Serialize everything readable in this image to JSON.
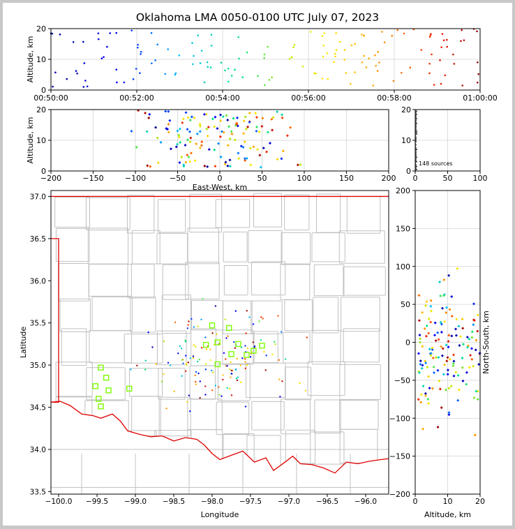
{
  "title": "Oklahoma LMA 0050-0100 UTC July 07, 2023",
  "colors": {
    "grid": "#d3d3d3",
    "county": "#c0c0c0",
    "state": "#e00000",
    "station": "#7cfc00"
  },
  "chart_data": [
    {
      "name": "time-height",
      "type": "scatter",
      "ylabel": "Altitude, km",
      "xlim": [
        "00:50:00",
        "01:00:00"
      ],
      "ylim": [
        0,
        20
      ],
      "xticks": [
        "00:50:00",
        "00:52:00",
        "00:54:00",
        "00:56:00",
        "00:58:00",
        "01:00:00"
      ],
      "yticks": [
        "0",
        "10",
        "20"
      ],
      "color_by_time": true,
      "points_approx": [
        [
          0.2,
          16
        ],
        [
          0.8,
          19
        ],
        [
          1.4,
          18
        ],
        [
          2.5,
          13
        ],
        [
          3.2,
          9
        ],
        [
          4.1,
          6
        ],
        [
          4.7,
          10
        ],
        [
          5.3,
          19
        ],
        [
          6.2,
          12
        ],
        [
          7.6,
          3
        ],
        [
          8.5,
          10
        ],
        [
          9.1,
          17
        ],
        [
          9.5,
          3
        ],
        [
          10.2,
          19
        ],
        [
          11.8,
          8
        ],
        [
          12.6,
          20
        ],
        [
          13.4,
          10
        ],
        [
          14.8,
          19
        ],
        [
          15.9,
          12
        ],
        [
          16.7,
          15
        ],
        [
          17.6,
          10
        ],
        [
          18.4,
          15
        ],
        [
          19.3,
          18
        ],
        [
          20.8,
          11
        ],
        [
          21.7,
          6
        ],
        [
          22.4,
          17
        ],
        [
          23.1,
          13
        ],
        [
          24.6,
          9
        ]
      ]
    },
    {
      "name": "east-west-height",
      "type": "scatter",
      "xlabel": "East-West, km",
      "ylabel": "Altitude, km",
      "xlim": [
        -200,
        200
      ],
      "ylim": [
        0,
        20
      ],
      "xticks": [
        "−200",
        "−150",
        "−100",
        "−50",
        "0",
        "50",
        "100",
        "150",
        "200"
      ],
      "yticks": [
        "0",
        "10",
        "20"
      ]
    },
    {
      "name": "histogram",
      "type": "bar",
      "xlim": [
        0,
        100
      ],
      "ylim": [
        0,
        20
      ],
      "xticks": [
        "0",
        "50",
        "100"
      ],
      "yticks": [
        "0",
        "10",
        "20"
      ],
      "annotation": "148 sources"
    },
    {
      "name": "plan-view",
      "type": "map",
      "xlabel": "Longitude",
      "ylabel": "Latitude",
      "xlim": [
        -100.1,
        -95.7
      ],
      "ylim": [
        33.47,
        37.07
      ],
      "xticks": [
        "−100.0",
        "−99.5",
        "−99.0",
        "−98.5",
        "−98.0",
        "−97.5",
        "−97.0",
        "−96.5",
        "−96.0"
      ],
      "yticks": [
        "33.5",
        "34.0",
        "34.5",
        "35.0",
        "35.5",
        "36.0",
        "36.5",
        "37.0"
      ],
      "stations": [
        [
          -99.45,
          34.97
        ],
        [
          -99.38,
          34.85
        ],
        [
          -99.52,
          34.75
        ],
        [
          -99.35,
          34.7
        ],
        [
          -99.48,
          34.6
        ],
        [
          -99.45,
          34.51
        ],
        [
          -99.08,
          34.72
        ],
        [
          -98.0,
          35.47
        ],
        [
          -97.78,
          35.44
        ],
        [
          -98.08,
          35.24
        ],
        [
          -97.93,
          35.27
        ],
        [
          -97.66,
          35.25
        ],
        [
          -97.75,
          35.13
        ],
        [
          -97.55,
          35.12
        ],
        [
          -97.46,
          35.17
        ],
        [
          -97.35,
          35.23
        ],
        [
          -97.93,
          35.01
        ]
      ]
    },
    {
      "name": "north-south-height",
      "type": "scatter",
      "xlabel": "Altitude, km",
      "ylabel": "North-South, km",
      "xlim": [
        0,
        20
      ],
      "ylim": [
        -200,
        200
      ],
      "xticks": [
        "0",
        "10",
        "20"
      ],
      "yticks": [
        "−200",
        "−150",
        "−100",
        "−50",
        "0",
        "50",
        "100",
        "150",
        "200"
      ]
    }
  ]
}
